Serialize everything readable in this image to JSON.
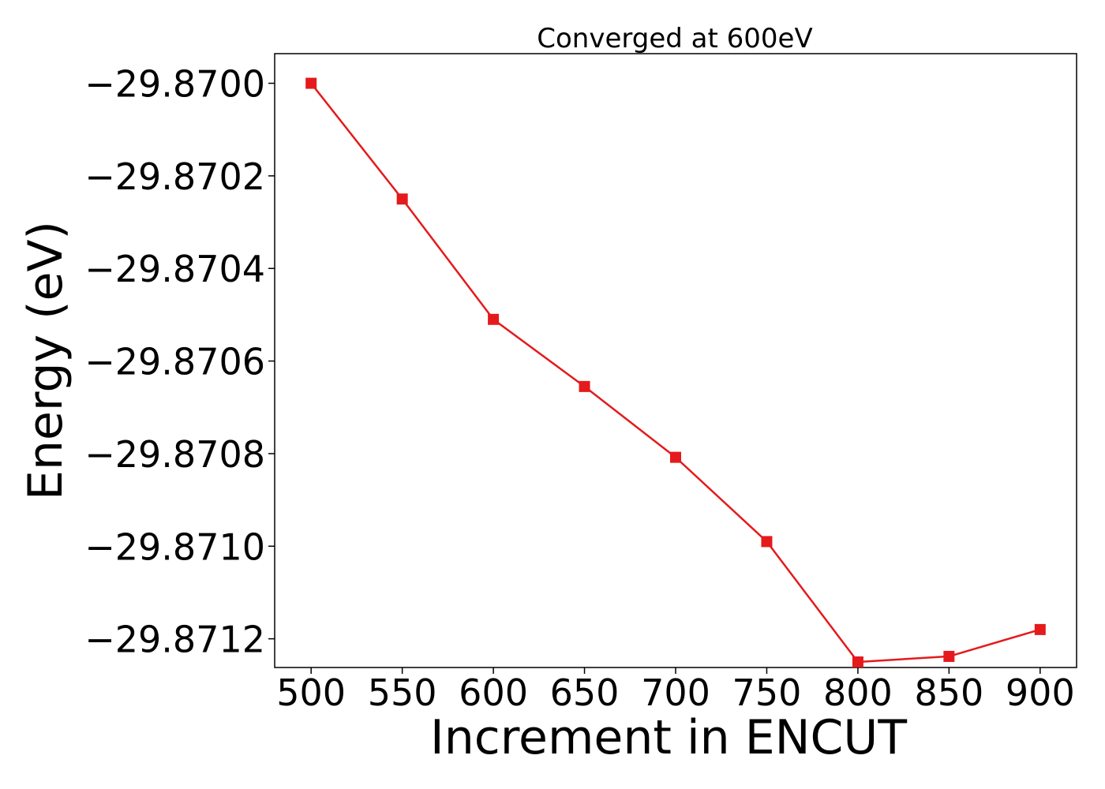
{
  "chart_data": {
    "type": "line",
    "title": "Converged at 600eV",
    "xlabel": "Increment in ENCUT",
    "ylabel": "Energy (eV)",
    "x": [
      500,
      550,
      600,
      650,
      700,
      750,
      800,
      850,
      900
    ],
    "series": [
      {
        "name": "",
        "values": [
          -29.87,
          -29.87025,
          -29.87051,
          -29.870655,
          -29.870808,
          -29.87099,
          -29.87125,
          -29.871238,
          -29.87118
        ]
      }
    ],
    "xlim": [
      480,
      920
    ],
    "ylim": [
      -29.871262,
      -29.869936
    ],
    "xticks": [
      500,
      550,
      600,
      650,
      700,
      750,
      800,
      850,
      900
    ],
    "xtick_labels": [
      "500",
      "550",
      "600",
      "650",
      "700",
      "750",
      "800",
      "850",
      "900"
    ],
    "yticks": [
      -29.87,
      -29.8702,
      -29.8704,
      -29.8706,
      -29.8708,
      -29.871,
      -29.8712
    ],
    "ytick_labels": [
      "−29.8700",
      "−29.8702",
      "−29.8704",
      "−29.8706",
      "−29.8708",
      "−29.8710",
      "−29.8712"
    ],
    "grid": false,
    "legend": "none",
    "colors": {
      "series": "#e41a1c",
      "axes": "#000000",
      "background": "#ffffff"
    },
    "marker": "square"
  }
}
